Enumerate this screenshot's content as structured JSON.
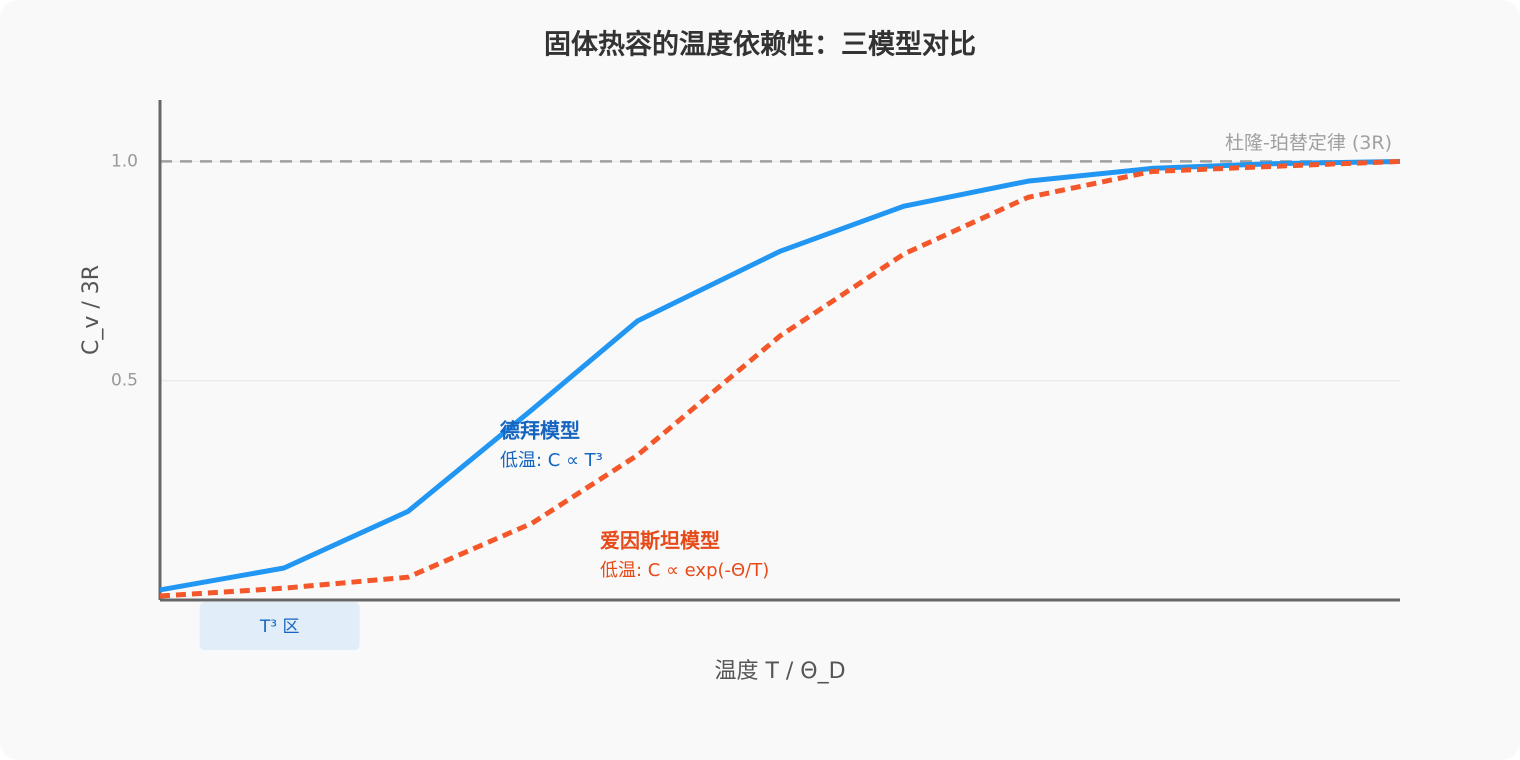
{
  "chart_data": {
    "type": "line",
    "title": "固体热容的温度依赖性：三模型对比",
    "x_label": "温度 T / Θ_D",
    "y_label": "C_v / 3R",
    "x": [
      0,
      0.1,
      0.2,
      0.3,
      0.385,
      0.5,
      0.6,
      0.7,
      0.8,
      0.9,
      1.0
    ],
    "xlim": [
      0,
      1
    ],
    "ylim": [
      0,
      1.14
    ],
    "yticks": [
      0.5,
      {
        "value": 1,
        "label": "1.0"
      }
    ],
    "grid": true,
    "series": [
      {
        "name": "德拜模型",
        "note": "低温: C ∝ T³",
        "color": "#2196f3",
        "label_color": "#1565c0",
        "dash": false,
        "values": [
          0.023,
          0.073,
          0.202,
          0.434,
          0.636,
          0.795,
          0.898,
          0.955,
          0.984,
          0.995,
          1.0
        ]
      },
      {
        "name": "爱因斯坦模型",
        "note": "低温: C ∝ exp(-Θ/T)",
        "color": "#f4572a",
        "label_color": "#e64a19",
        "dash": true,
        "values": [
          0.009,
          0.027,
          0.052,
          0.175,
          0.33,
          0.602,
          0.789,
          0.918,
          0.977,
          0.989,
          1.0
        ]
      }
    ],
    "reference_line": {
      "value": 1,
      "label": "杜隆-珀替定律 (3R)"
    },
    "region": {
      "label": "T³ 区",
      "x": [
        0.032,
        0.161
      ]
    }
  }
}
